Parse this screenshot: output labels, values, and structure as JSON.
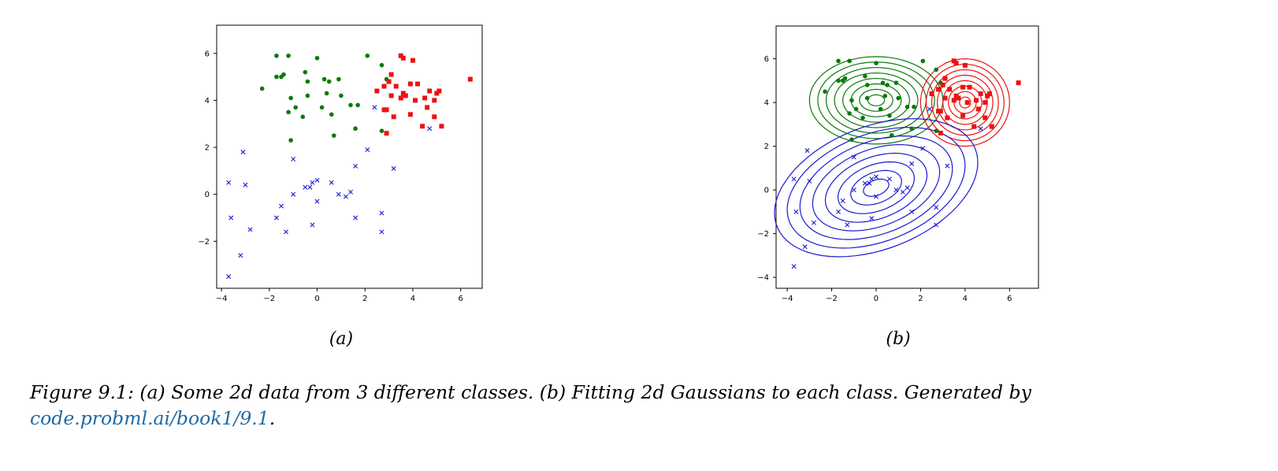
{
  "figure": {
    "sublabel_a": "(a)",
    "sublabel_b": "(b)",
    "caption_text": "Figure 9.1: (a) Some 2d data from 3 different classes. (b) Fitting 2d Gaussians to each class. Generated by ",
    "caption_link": "code.probml.ai/book1/9.1",
    "caption_end": "."
  },
  "colors": {
    "green": "#0a7a0a",
    "red": "#ee1111",
    "blue": "#1a1ad0"
  },
  "chart_data": [
    {
      "type": "scatter",
      "panel": "a",
      "xlim": [
        -4.2,
        6.9
      ],
      "ylim": [
        -4.0,
        7.2
      ],
      "xticks": [
        -4,
        -2,
        0,
        2,
        4,
        6
      ],
      "yticks": [
        -2,
        0,
        2,
        4,
        6
      ],
      "series": [
        {
          "class": "green",
          "marker": "circle",
          "points": [
            [
              -1.7,
              5.9
            ],
            [
              -1.2,
              5.9
            ],
            [
              -0.5,
              5.2
            ],
            [
              0.0,
              5.8
            ],
            [
              -1.5,
              5.0
            ],
            [
              -1.7,
              5.0
            ],
            [
              -1.4,
              5.1
            ],
            [
              -2.3,
              4.5
            ],
            [
              -0.4,
              4.8
            ],
            [
              0.3,
              4.9
            ],
            [
              0.5,
              4.8
            ],
            [
              0.9,
              4.9
            ],
            [
              2.1,
              5.9
            ],
            [
              2.7,
              5.5
            ],
            [
              -1.1,
              4.1
            ],
            [
              -0.9,
              3.7
            ],
            [
              -0.6,
              3.3
            ],
            [
              -0.4,
              4.2
            ],
            [
              0.2,
              3.7
            ],
            [
              0.4,
              4.3
            ],
            [
              1.0,
              4.2
            ],
            [
              1.4,
              3.8
            ],
            [
              1.7,
              3.8
            ],
            [
              -1.2,
              3.5
            ],
            [
              -1.1,
              2.3
            ],
            [
              0.6,
              3.4
            ],
            [
              0.7,
              2.5
            ],
            [
              1.6,
              2.8
            ],
            [
              2.7,
              2.7
            ],
            [
              2.9,
              4.9
            ]
          ]
        },
        {
          "class": "red",
          "marker": "square",
          "points": [
            [
              3.5,
              5.9
            ],
            [
              3.6,
              5.8
            ],
            [
              4.0,
              5.7
            ],
            [
              2.5,
              4.4
            ],
            [
              2.8,
              4.6
            ],
            [
              3.0,
              4.8
            ],
            [
              3.1,
              5.1
            ],
            [
              3.3,
              4.6
            ],
            [
              3.6,
              4.3
            ],
            [
              3.9,
              4.7
            ],
            [
              4.2,
              4.7
            ],
            [
              4.7,
              4.4
            ],
            [
              5.0,
              4.3
            ],
            [
              5.1,
              4.4
            ],
            [
              4.9,
              4.0
            ],
            [
              4.5,
              4.1
            ],
            [
              4.1,
              4.0
            ],
            [
              3.7,
              4.2
            ],
            [
              3.5,
              4.1
            ],
            [
              3.1,
              4.2
            ],
            [
              2.8,
              3.6
            ],
            [
              2.9,
              3.6
            ],
            [
              3.2,
              3.3
            ],
            [
              3.9,
              3.4
            ],
            [
              4.6,
              3.7
            ],
            [
              4.9,
              3.3
            ],
            [
              5.2,
              2.9
            ],
            [
              4.4,
              2.9
            ],
            [
              2.9,
              2.6
            ],
            [
              6.4,
              4.9
            ]
          ]
        },
        {
          "class": "blue",
          "marker": "x",
          "points": [
            [
              -3.7,
              0.5
            ],
            [
              -3.1,
              1.8
            ],
            [
              -3.0,
              0.4
            ],
            [
              -3.6,
              -1.0
            ],
            [
              -2.8,
              -1.5
            ],
            [
              -3.2,
              -2.6
            ],
            [
              -3.7,
              -3.5
            ],
            [
              -1.7,
              -1.0
            ],
            [
              -1.5,
              -0.5
            ],
            [
              -1.3,
              -1.6
            ],
            [
              -1.0,
              0.0
            ],
            [
              -1.0,
              1.5
            ],
            [
              -0.5,
              0.3
            ],
            [
              -0.3,
              0.3
            ],
            [
              -0.2,
              0.5
            ],
            [
              0.0,
              0.6
            ],
            [
              0.0,
              -0.3
            ],
            [
              -0.2,
              -1.3
            ],
            [
              0.6,
              0.5
            ],
            [
              0.9,
              0.0
            ],
            [
              1.2,
              -0.1
            ],
            [
              1.4,
              0.1
            ],
            [
              1.6,
              1.2
            ],
            [
              1.6,
              -1.0
            ],
            [
              2.1,
              1.9
            ],
            [
              2.4,
              3.7
            ],
            [
              2.7,
              -0.8
            ],
            [
              2.7,
              -1.6
            ],
            [
              3.2,
              1.1
            ],
            [
              4.7,
              2.8
            ]
          ]
        }
      ]
    },
    {
      "type": "scatter",
      "panel": "b",
      "xlim": [
        -4.5,
        7.3
      ],
      "ylim": [
        -4.5,
        7.5
      ],
      "xticks": [
        -4,
        -2,
        0,
        2,
        4,
        6
      ],
      "yticks": [
        -4,
        -2,
        0,
        2,
        4,
        6
      ],
      "series_ref": "same points as panel a",
      "contours": [
        {
          "class": "green",
          "center": [
            0.0,
            4.1
          ],
          "semi_axes": [
            3.0,
            2.0
          ],
          "angle_deg": 0,
          "levels": 8
        },
        {
          "class": "red",
          "center": [
            4.0,
            4.0
          ],
          "semi_axes": [
            2.0,
            2.0
          ],
          "angle_deg": 0,
          "levels": 8
        },
        {
          "class": "blue",
          "center": [
            0.0,
            0.1
          ],
          "semi_axes": [
            4.8,
            2.8
          ],
          "angle_deg": 22,
          "levels": 8
        }
      ]
    }
  ]
}
